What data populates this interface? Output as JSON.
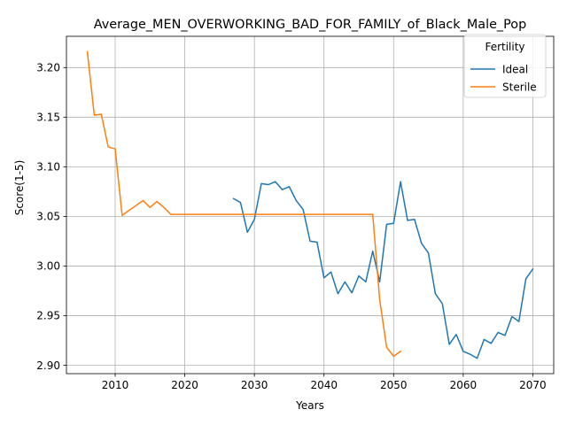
{
  "chart_data": {
    "type": "line",
    "title": "Average_MEN_OVERWORKING_BAD_FOR_FAMILY_of_Black_Male_Pop",
    "xlabel": "Years",
    "ylabel": "Score(1-5)",
    "xlim": [
      2003,
      2073
    ],
    "ylim": [
      2.8915,
      3.2315
    ],
    "xticks": [
      2010,
      2020,
      2030,
      2040,
      2050,
      2060,
      2070
    ],
    "xtick_labels": [
      "2010",
      "2020",
      "2030",
      "2040",
      "2050",
      "2060",
      "2070"
    ],
    "yticks": [
      2.9,
      2.95,
      3.0,
      3.05,
      3.1,
      3.15,
      3.2
    ],
    "ytick_labels": [
      "2.90",
      "2.95",
      "3.00",
      "3.05",
      "3.10",
      "3.15",
      "3.20"
    ],
    "grid": true,
    "legend": {
      "title": "Fertility",
      "placement": "top-right"
    },
    "series": [
      {
        "name": "Ideal",
        "color": "#1f77b4",
        "x": [
          2027,
          2028,
          2029,
          2030,
          2031,
          2032,
          2033,
          2034,
          2035,
          2036,
          2037,
          2038,
          2039,
          2040,
          2041,
          2042,
          2043,
          2044,
          2045,
          2046,
          2047,
          2048,
          2049,
          2050,
          2051,
          2052,
          2053,
          2054,
          2055,
          2056,
          2057,
          2058,
          2059,
          2060,
          2061,
          2062,
          2063,
          2064,
          2065,
          2066,
          2067,
          2068,
          2069,
          2070
        ],
        "values": [
          3.068,
          3.064,
          3.034,
          3.047,
          3.083,
          3.082,
          3.085,
          3.077,
          3.08,
          3.066,
          3.057,
          3.025,
          3.024,
          2.988,
          2.994,
          2.972,
          2.984,
          2.973,
          2.99,
          2.984,
          3.015,
          2.984,
          3.042,
          3.043,
          3.085,
          3.046,
          3.047,
          3.023,
          3.013,
          2.972,
          2.962,
          2.921,
          2.931,
          2.914,
          2.911,
          2.907,
          2.926,
          2.922,
          2.933,
          2.93,
          2.949,
          2.944,
          2.987,
          2.997
        ]
      },
      {
        "name": "Sterile",
        "color": "#ff7f0e",
        "x": [
          2006,
          2007,
          2008,
          2009,
          2010,
          2011,
          2012,
          2013,
          2014,
          2015,
          2016,
          2017,
          2018,
          2019,
          2020,
          2021,
          2022,
          2023,
          2024,
          2025,
          2026,
          2027,
          2028,
          2029,
          2030,
          2031,
          2032,
          2033,
          2034,
          2035,
          2036,
          2037,
          2038,
          2039,
          2040,
          2041,
          2042,
          2043,
          2044,
          2045,
          2046,
          2047,
          2048,
          2049,
          2050,
          2051
        ],
        "values": [
          3.216,
          3.152,
          3.153,
          3.12,
          3.118,
          3.051,
          3.056,
          3.061,
          3.066,
          3.059,
          3.065,
          3.059,
          3.052,
          3.052,
          3.052,
          3.052,
          3.052,
          3.052,
          3.052,
          3.052,
          3.052,
          3.052,
          3.052,
          3.052,
          3.052,
          3.052,
          3.052,
          3.052,
          3.052,
          3.052,
          3.052,
          3.052,
          3.052,
          3.052,
          3.052,
          3.052,
          3.052,
          3.052,
          3.052,
          3.052,
          3.052,
          3.052,
          2.966,
          2.918,
          2.909,
          2.914
        ]
      }
    ]
  }
}
